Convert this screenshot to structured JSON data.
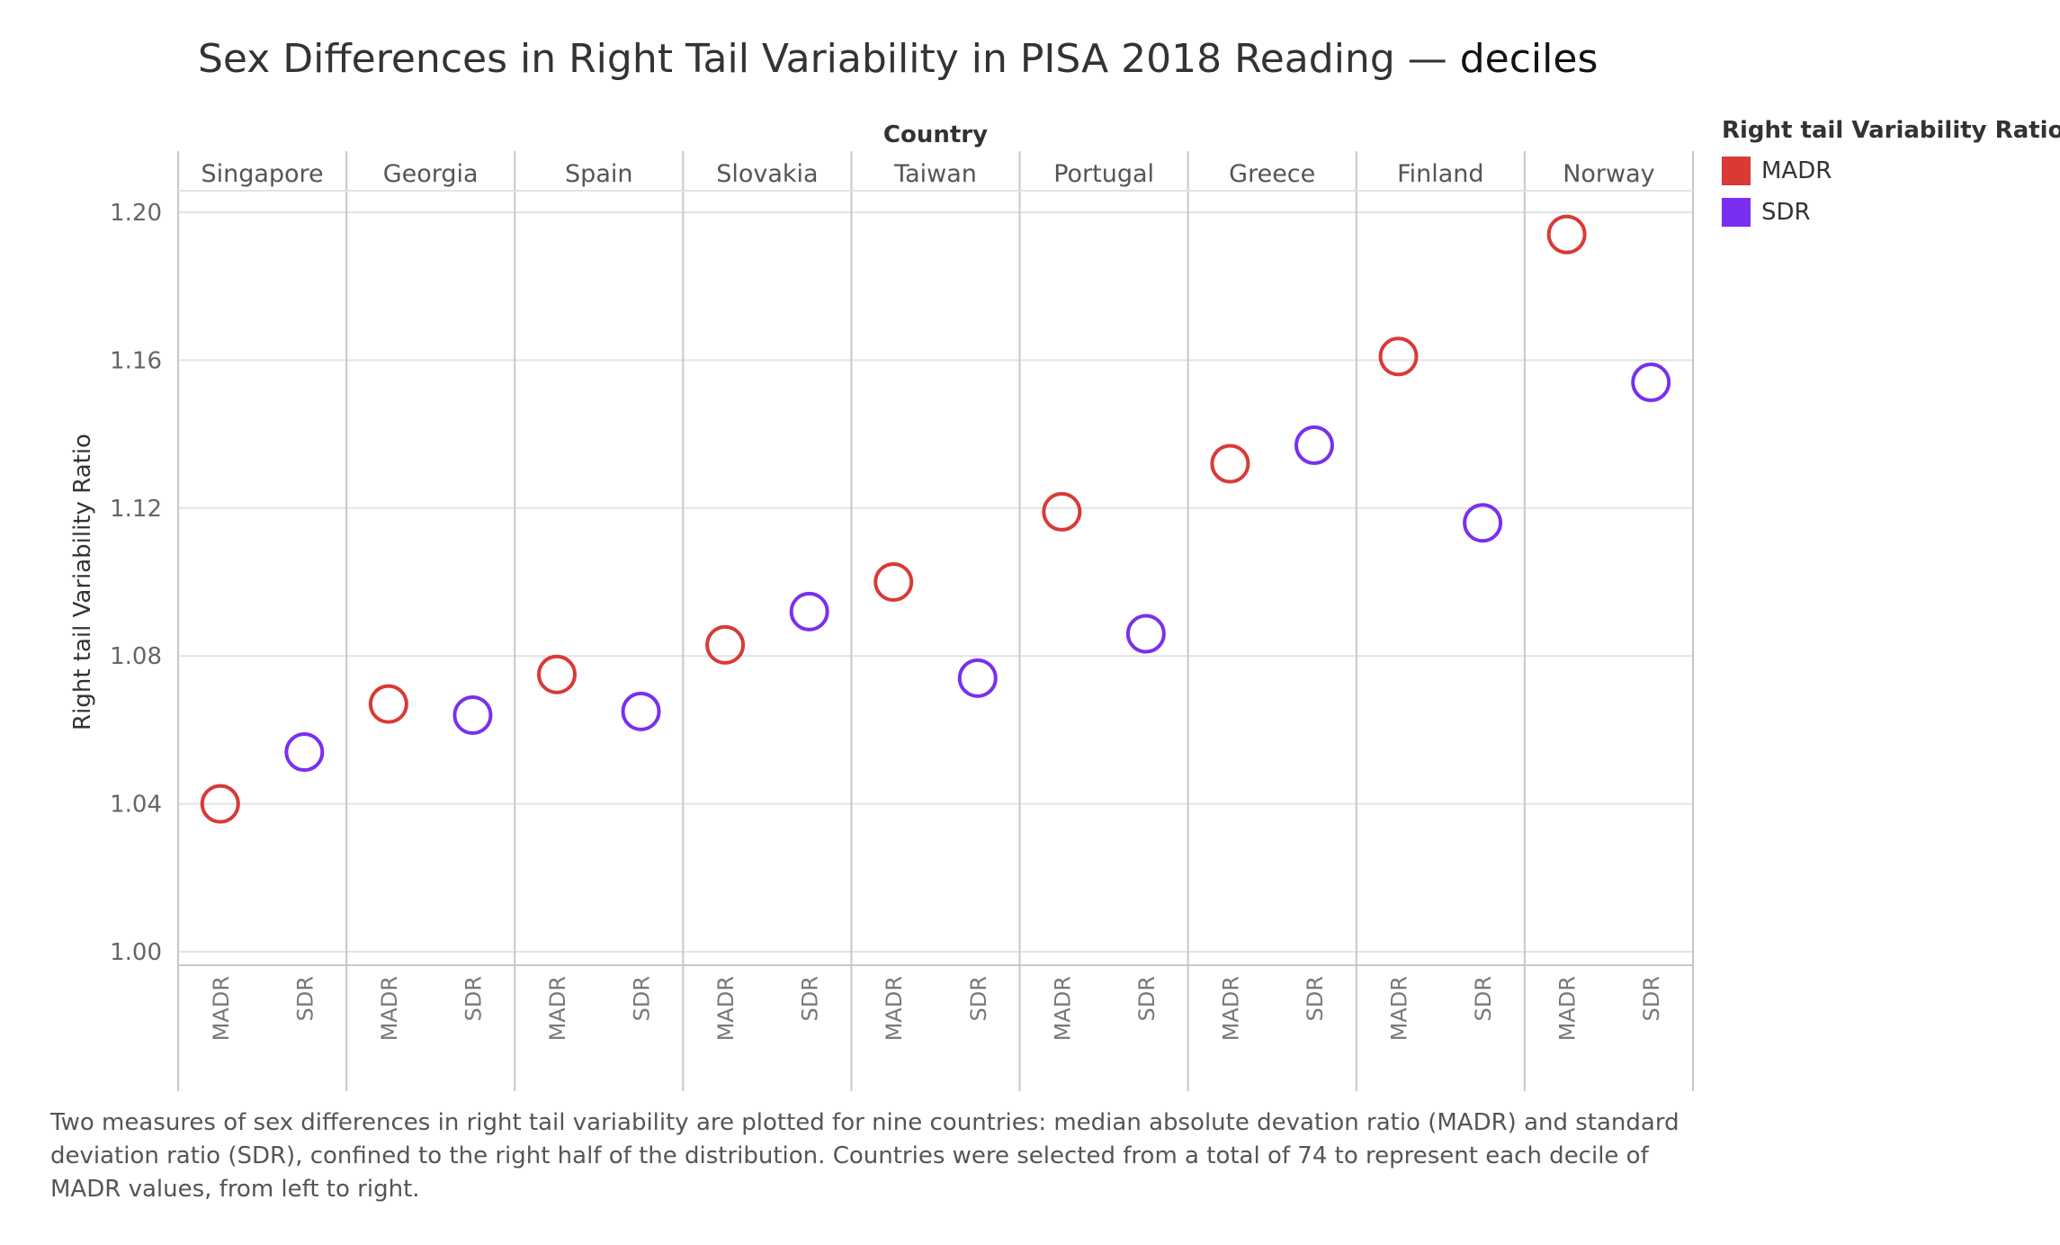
{
  "title": {
    "main": "Sex Differences in Right Tail Variability in PISA 2018 Reading —",
    "emphasis": "deciles"
  },
  "legend": {
    "title": "Right tail Variability Ratios",
    "items": [
      {
        "label": "MADR",
        "color": "#d93a35"
      },
      {
        "label": "SDR",
        "color": "#7a2ff0"
      }
    ]
  },
  "caption": "Two measures of sex differences in right tail variability are plotted for nine countries: median absolute devation ratio (MADR) and standard deviation ratio (SDR), confined to the right half of the distribution. Countries were selected from a total of 74 to represent each decile of MADR values, from left to right.",
  "chart_data": {
    "type": "scatter",
    "title": "Sex Differences in Right Tail Variability in PISA 2018 Reading — deciles",
    "column_header": "Country",
    "ylabel": "Right tail Variability Ratio",
    "ylim": [
      1.0,
      1.2
    ],
    "yticks": [
      "1.00",
      "1.04",
      "1.08",
      "1.12",
      "1.16",
      "1.20"
    ],
    "grid": true,
    "legend_position": "right",
    "measures": [
      "MADR",
      "SDR"
    ],
    "categories": [
      "Singapore",
      "Georgia",
      "Spain",
      "Slovakia",
      "Taiwan",
      "Portugal",
      "Greece",
      "Finland",
      "Norway"
    ],
    "series": [
      {
        "name": "MADR",
        "color": "#d93a35",
        "values": [
          1.04,
          1.067,
          1.075,
          1.083,
          1.1,
          1.119,
          1.132,
          1.161,
          1.194
        ]
      },
      {
        "name": "SDR",
        "color": "#7a2ff0",
        "values": [
          1.054,
          1.064,
          1.065,
          1.092,
          1.074,
          1.086,
          1.137,
          1.116,
          1.154
        ]
      }
    ]
  }
}
